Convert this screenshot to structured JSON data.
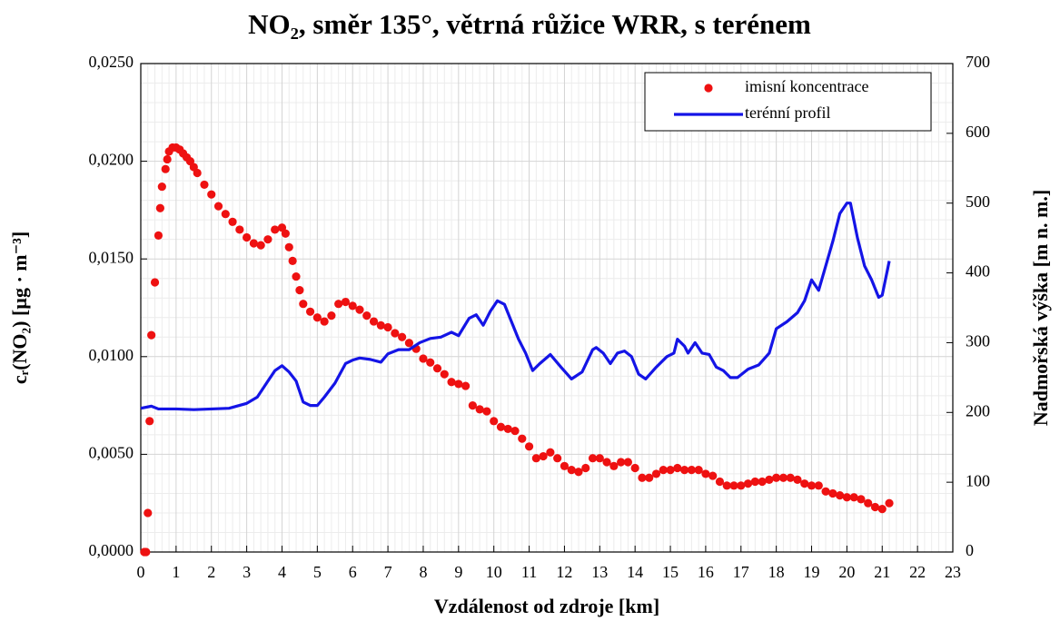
{
  "chart_data": {
    "type": "combo",
    "title": "NO₂, směr 135°, větrná růžice WRR, s terénem",
    "xlabel": "Vzdálenost od zdroje [km]",
    "ylabel": "cᵣ(NO₂) [µg · m⁻³]",
    "y2label": "Nadmořská výška [m n. m.]",
    "xlim": [
      0,
      23
    ],
    "xticks": [
      0,
      1,
      2,
      3,
      4,
      5,
      6,
      7,
      8,
      9,
      10,
      11,
      12,
      13,
      14,
      15,
      16,
      17,
      18,
      19,
      20,
      21,
      22,
      23
    ],
    "ylim": [
      0,
      0.025
    ],
    "yticks": [
      {
        "value": 0,
        "label": "0,0000"
      },
      {
        "value": 0.005,
        "label": "0,0050"
      },
      {
        "value": 0.01,
        "label": "0,0100"
      },
      {
        "value": 0.015,
        "label": "0,0150"
      },
      {
        "value": 0.02,
        "label": "0,0200"
      },
      {
        "value": 0.025,
        "label": "0,0250"
      }
    ],
    "y2lim": [
      0,
      700
    ],
    "y2ticks": [
      0,
      100,
      200,
      300,
      400,
      500,
      600,
      700
    ],
    "grid": true,
    "minor_grid": true,
    "legend": "upper right",
    "series": [
      {
        "name": "imisní koncentrace",
        "type": "scatter",
        "color": "#ee1111",
        "x": [
          0.1,
          0.15,
          0.2,
          0.25,
          0.3,
          0.4,
          0.5,
          0.55,
          0.6,
          0.7,
          0.75,
          0.8,
          0.9,
          1.0,
          1.1,
          1.2,
          1.3,
          1.4,
          1.5,
          1.6,
          1.8,
          2.0,
          2.2,
          2.4,
          2.6,
          2.8,
          3.0,
          3.2,
          3.4,
          3.6,
          3.8,
          4.0,
          4.1,
          4.2,
          4.3,
          4.4,
          4.5,
          4.6,
          4.8,
          5.0,
          5.2,
          5.4,
          5.6,
          5.8,
          6.0,
          6.2,
          6.4,
          6.6,
          6.8,
          7.0,
          7.2,
          7.4,
          7.6,
          7.8,
          8.0,
          8.2,
          8.4,
          8.6,
          8.8,
          9.0,
          9.2,
          9.4,
          9.6,
          9.8,
          10.0,
          10.2,
          10.4,
          10.6,
          10.8,
          11.0,
          11.2,
          11.4,
          11.6,
          11.8,
          12.0,
          12.2,
          12.4,
          12.6,
          12.8,
          13.0,
          13.2,
          13.4,
          13.6,
          13.8,
          14.0,
          14.2,
          14.4,
          14.6,
          14.8,
          15.0,
          15.2,
          15.4,
          15.6,
          15.8,
          16.0,
          16.2,
          16.4,
          16.6,
          16.8,
          17.0,
          17.2,
          17.4,
          17.6,
          17.8,
          18.0,
          18.2,
          18.4,
          18.6,
          18.8,
          19.0,
          19.2,
          19.4,
          19.6,
          19.8,
          20.0,
          20.2,
          20.4,
          20.6,
          20.8,
          21.0,
          21.2
        ],
        "values": [
          0.0,
          0.0,
          0.002,
          0.0067,
          0.0111,
          0.0138,
          0.0162,
          0.0176,
          0.0187,
          0.0196,
          0.0201,
          0.0205,
          0.0207,
          0.0207,
          0.0206,
          0.0204,
          0.0202,
          0.02,
          0.0197,
          0.0194,
          0.0188,
          0.0183,
          0.0177,
          0.0173,
          0.0169,
          0.0165,
          0.0161,
          0.0158,
          0.0157,
          0.016,
          0.0165,
          0.0166,
          0.0163,
          0.0156,
          0.0149,
          0.0141,
          0.0134,
          0.0127,
          0.0123,
          0.012,
          0.0118,
          0.0121,
          0.0127,
          0.0128,
          0.0126,
          0.0124,
          0.0121,
          0.0118,
          0.0116,
          0.0115,
          0.0112,
          0.011,
          0.0107,
          0.0104,
          0.0099,
          0.0097,
          0.0094,
          0.0091,
          0.0087,
          0.0086,
          0.0085,
          0.0075,
          0.0073,
          0.0072,
          0.0067,
          0.0064,
          0.0063,
          0.0062,
          0.0058,
          0.0054,
          0.0048,
          0.0049,
          0.0051,
          0.0048,
          0.0044,
          0.0042,
          0.0041,
          0.0043,
          0.0048,
          0.0048,
          0.0046,
          0.0044,
          0.0046,
          0.0046,
          0.0043,
          0.0038,
          0.0038,
          0.004,
          0.0042,
          0.0042,
          0.0043,
          0.0042,
          0.0042,
          0.0042,
          0.004,
          0.0039,
          0.0036,
          0.0034,
          0.0034,
          0.0034,
          0.0035,
          0.0036,
          0.0036,
          0.0037,
          0.0038,
          0.0038,
          0.0038,
          0.0037,
          0.0035,
          0.0034,
          0.0034,
          0.0031,
          0.003,
          0.0029,
          0.0028,
          0.0028,
          0.0027,
          0.0025,
          0.0023,
          0.0022,
          0.0025
        ]
      },
      {
        "name": "terénní profil",
        "type": "line",
        "color": "#1414e6",
        "axis": "y2",
        "x": [
          0,
          0.3,
          0.5,
          1,
          1.5,
          2,
          2.5,
          3,
          3.3,
          3.6,
          3.8,
          4.0,
          4.2,
          4.4,
          4.6,
          4.8,
          5.0,
          5.2,
          5.5,
          5.8,
          6.0,
          6.2,
          6.5,
          6.8,
          7.0,
          7.3,
          7.6,
          7.9,
          8.2,
          8.5,
          8.8,
          9.0,
          9.3,
          9.5,
          9.7,
          9.9,
          10.1,
          10.3,
          10.5,
          10.7,
          10.9,
          11.1,
          11.3,
          11.6,
          11.9,
          12.2,
          12.5,
          12.8,
          12.9,
          13.1,
          13.3,
          13.5,
          13.7,
          13.9,
          14.1,
          14.3,
          14.6,
          14.9,
          15.1,
          15.2,
          15.4,
          15.5,
          15.7,
          15.9,
          16.1,
          16.3,
          16.5,
          16.7,
          16.9,
          17.2,
          17.5,
          17.8,
          18.0,
          18.3,
          18.6,
          18.8,
          19.0,
          19.2,
          19.4,
          19.6,
          19.8,
          20.0,
          20.1,
          20.3,
          20.5,
          20.7,
          20.9,
          21.0,
          21.2
        ],
        "values": [
          206,
          209,
          205,
          205,
          204,
          205,
          206,
          213,
          222,
          245,
          260,
          267,
          258,
          245,
          215,
          210,
          210,
          222,
          242,
          270,
          275,
          278,
          276,
          272,
          284,
          290,
          290,
          300,
          306,
          308,
          315,
          310,
          335,
          340,
          325,
          345,
          360,
          355,
          330,
          305,
          285,
          260,
          270,
          283,
          265,
          248,
          258,
          290,
          293,
          285,
          270,
          285,
          288,
          280,
          255,
          248,
          265,
          280,
          285,
          305,
          295,
          285,
          300,
          285,
          283,
          265,
          260,
          250,
          250,
          262,
          268,
          285,
          320,
          330,
          343,
          360,
          390,
          375,
          410,
          445,
          485,
          500,
          500,
          450,
          410,
          390,
          365,
          368,
          417
        ]
      }
    ]
  }
}
